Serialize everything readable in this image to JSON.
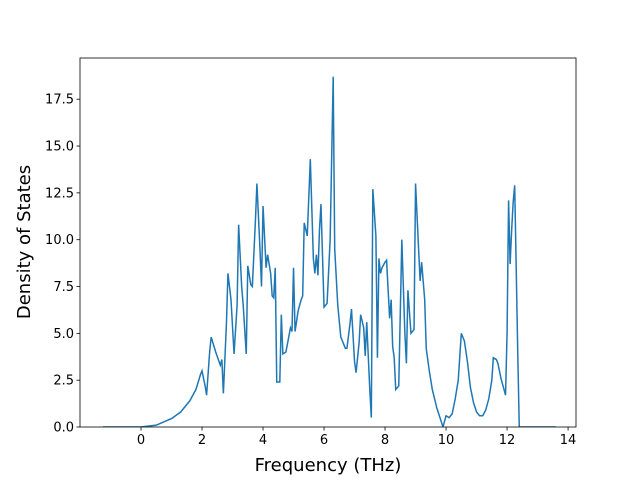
{
  "chart_data": {
    "type": "line",
    "x_label": "Frequency (THz)",
    "y_label": "Density of States",
    "xlim": [
      -2.0,
      14.26
    ],
    "ylim": [
      0,
      19.7
    ],
    "xticks": [
      0,
      2,
      4,
      6,
      8,
      10,
      12,
      14
    ],
    "yticks": [
      {
        "value": 0,
        "label": "0.0"
      },
      2.5,
      {
        "value": 5,
        "label": "5.0"
      },
      7.5,
      {
        "value": 10,
        "label": "10.0"
      },
      12.5,
      {
        "value": 15,
        "label": "15.0"
      },
      17.5
    ],
    "series": [
      {
        "color": "#1f77b4",
        "x": [
          -1.25,
          -0.5,
          0,
          0.5,
          1.0,
          1.3,
          1.6,
          1.8,
          1.95,
          2.0,
          2.1,
          2.15,
          2.25,
          2.3,
          2.45,
          2.6,
          2.65,
          2.7,
          2.8,
          2.85,
          2.95,
          3.05,
          3.15,
          3.2,
          3.3,
          3.35,
          3.45,
          3.5,
          3.6,
          3.65,
          3.75,
          3.8,
          3.9,
          3.95,
          4.0,
          4.1,
          4.15,
          4.25,
          4.3,
          4.35,
          4.4,
          4.45,
          4.55,
          4.6,
          4.65,
          4.75,
          4.9,
          4.95,
          5.0,
          5.05,
          5.15,
          5.25,
          5.3,
          5.35,
          5.45,
          5.55,
          5.65,
          5.7,
          5.75,
          5.8,
          5.85,
          5.9,
          6.0,
          6.1,
          6.2,
          6.3,
          6.35,
          6.45,
          6.55,
          6.6,
          6.7,
          6.75,
          6.85,
          6.9,
          7.0,
          7.05,
          7.15,
          7.2,
          7.3,
          7.35,
          7.4,
          7.5,
          7.55,
          7.6,
          7.7,
          7.75,
          7.8,
          7.85,
          7.9,
          8.0,
          8.05,
          8.15,
          8.2,
          8.25,
          8.3,
          8.35,
          8.45,
          8.55,
          8.65,
          8.7,
          8.75,
          8.85,
          8.95,
          9.0,
          9.1,
          9.15,
          9.2,
          9.3,
          9.35,
          9.45,
          9.55,
          9.7,
          9.8,
          9.9,
          10.0,
          10.1,
          10.2,
          10.3,
          10.4,
          10.5,
          10.6,
          10.7,
          10.8,
          10.9,
          11.0,
          11.1,
          11.2,
          11.3,
          11.4,
          11.5,
          11.55,
          11.65,
          11.7,
          11.8,
          11.9,
          11.95,
          12.0,
          12.05,
          12.1,
          12.15,
          12.2,
          12.25,
          12.35,
          12.4,
          13.6
        ],
        "values": [
          0,
          0,
          0,
          0.1,
          0.45,
          0.8,
          1.4,
          2.0,
          2.8,
          3.0,
          2.2,
          1.7,
          4.0,
          4.8,
          4.0,
          3.3,
          3.6,
          1.8,
          5.5,
          8.2,
          6.8,
          3.9,
          6.5,
          10.8,
          7.5,
          6.5,
          3.9,
          8.6,
          7.6,
          7.5,
          11.0,
          13.0,
          9.5,
          7.5,
          11.8,
          8.5,
          9.2,
          8.2,
          7.0,
          6.9,
          8.5,
          2.4,
          2.4,
          6.0,
          3.9,
          4.0,
          5.3,
          5.1,
          8.5,
          5.1,
          6.2,
          6.8,
          7.0,
          10.9,
          10.2,
          14.3,
          9.0,
          8.2,
          9.2,
          8.1,
          10.5,
          11.9,
          6.4,
          6.6,
          10.0,
          18.7,
          9.5,
          6.5,
          4.8,
          4.6,
          4.2,
          4.2,
          5.5,
          6.3,
          3.5,
          2.9,
          4.5,
          6.0,
          5.3,
          3.8,
          5.6,
          2.0,
          0.5,
          12.7,
          10.2,
          3.7,
          9.0,
          8.2,
          8.5,
          8.8,
          8.9,
          5.8,
          6.8,
          4.3,
          3.7,
          2.0,
          2.2,
          10.0,
          5.0,
          3.4,
          7.3,
          5.0,
          5.2,
          13.0,
          9.5,
          7.8,
          8.8,
          6.8,
          4.2,
          3.0,
          2.0,
          1.0,
          0.5,
          0.0,
          0.6,
          0.5,
          0.7,
          1.5,
          2.5,
          5.0,
          4.6,
          3.5,
          2.1,
          1.3,
          0.8,
          0.6,
          0.6,
          0.9,
          1.5,
          2.5,
          3.7,
          3.6,
          3.4,
          2.6,
          2.0,
          1.7,
          5.0,
          12.1,
          8.7,
          10.5,
          12.0,
          12.9,
          4.0,
          0,
          0
        ]
      }
    ]
  }
}
